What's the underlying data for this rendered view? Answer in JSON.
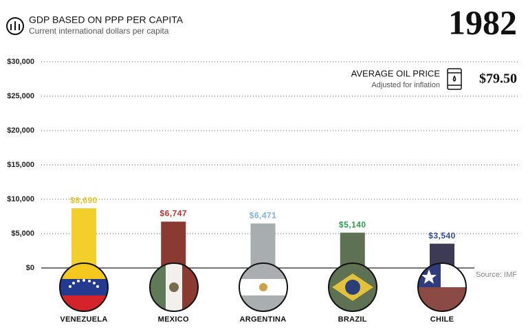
{
  "chart_data": {
    "type": "bar",
    "title": "GDP BASED ON PPP PER CAPITA",
    "subtitle": "Current international dollars per capita",
    "year": "1982",
    "oil_title": "AVERAGE OIL PRICE",
    "oil_subtitle": "Adjusted for inflation",
    "oil_price": "$79.50",
    "source": "Source: IMF",
    "categories": [
      "VENEZUELA",
      "MEXICO",
      "ARGENTINA",
      "BRAZIL",
      "CHILE"
    ],
    "values": [
      8690,
      6747,
      6471,
      5140,
      3540
    ],
    "value_labels": [
      "$8,690",
      "$6,747",
      "$6,471",
      "$5,140",
      "$3,540"
    ],
    "colors": [
      "#f2cf2b",
      "#8b3a32",
      "#a8adb0",
      "#5e7152",
      "#3d3a55"
    ],
    "label_colors": [
      "#e8c21c",
      "#c8302c",
      "#7fb2de",
      "#2d9a4a",
      "#2f4a9a"
    ],
    "ylim": [
      0,
      30000
    ],
    "yticks": [
      {
        "value": 0,
        "label": "$0"
      },
      {
        "value": 5000,
        "label": "$5,000"
      },
      {
        "value": 10000,
        "label": "$10,000"
      },
      {
        "value": 15000,
        "label": "$15,000"
      },
      {
        "value": 20000,
        "label": "$20,000"
      },
      {
        "value": 25000,
        "label": "$25,000"
      },
      {
        "value": 30000,
        "label": "$30,000"
      }
    ],
    "grid": true
  }
}
